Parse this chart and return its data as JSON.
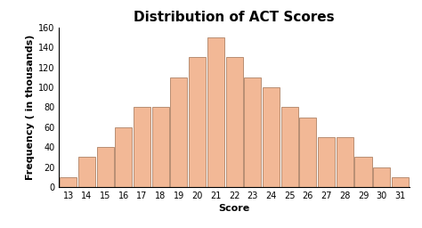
{
  "title": "Distribution of ACT Scores",
  "xlabel": "Score",
  "ylabel": "Frequency ( in thousands)",
  "scores": [
    13,
    14,
    15,
    16,
    17,
    18,
    19,
    20,
    21,
    22,
    23,
    24,
    25,
    26,
    27,
    28,
    29,
    30,
    31
  ],
  "values": [
    10,
    30,
    40,
    60,
    80,
    80,
    110,
    130,
    150,
    130,
    110,
    100,
    80,
    70,
    50,
    50,
    30,
    20,
    10
  ],
  "bar_color": "#F2B896",
  "bar_edge_color": "#A07050",
  "ylim": [
    0,
    160
  ],
  "yticks": [
    0,
    20,
    40,
    60,
    80,
    100,
    120,
    140,
    160
  ],
  "title_fontsize": 11,
  "label_fontsize": 8,
  "tick_fontsize": 7,
  "bar_width": 0.92
}
